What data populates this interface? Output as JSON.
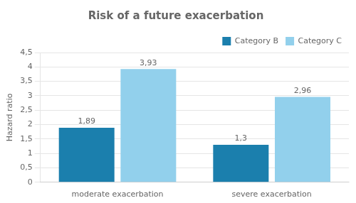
{
  "chart_data": {
    "type": "bar",
    "title": "Risk of a future exacerbation",
    "ylabel": "Hazard ratio",
    "categories": [
      "moderate exacerbation",
      "severe exacerbation"
    ],
    "series": [
      {
        "name": "Category B",
        "color": "#1b7fad",
        "values": [
          1.89,
          1.3
        ],
        "value_labels": [
          "1,89",
          "1,3"
        ]
      },
      {
        "name": "Category C",
        "color": "#92d0ec",
        "values": [
          3.93,
          2.96
        ],
        "value_labels": [
          "3,93",
          "2,96"
        ]
      }
    ],
    "ylim": [
      0,
      4.5
    ],
    "yticks": [
      0,
      {
        "value": 0.5,
        "label": "0,5"
      },
      1,
      {
        "value": 1.5,
        "label": "1,5"
      },
      2,
      {
        "value": 2.5,
        "label": "2,5"
      },
      3,
      {
        "value": 3.5,
        "label": "3,5"
      },
      4,
      {
        "value": 4.5,
        "label": "4,5"
      }
    ],
    "grid": true,
    "legend": "upper right",
    "data_labels": true
  }
}
